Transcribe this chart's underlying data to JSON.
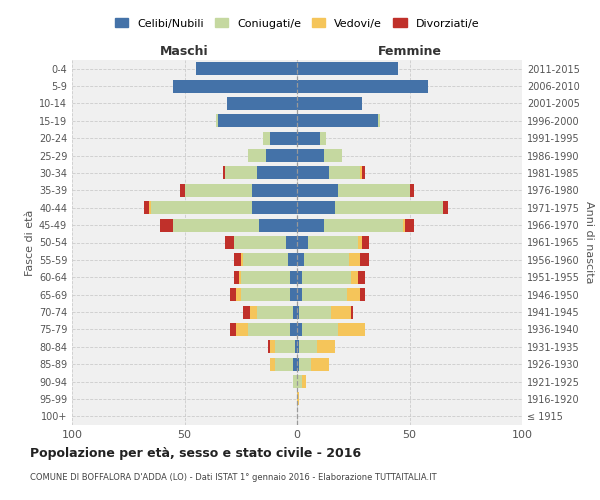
{
  "age_groups": [
    "100+",
    "95-99",
    "90-94",
    "85-89",
    "80-84",
    "75-79",
    "70-74",
    "65-69",
    "60-64",
    "55-59",
    "50-54",
    "45-49",
    "40-44",
    "35-39",
    "30-34",
    "25-29",
    "20-24",
    "15-19",
    "10-14",
    "5-9",
    "0-4"
  ],
  "birth_years": [
    "≤ 1915",
    "1916-1920",
    "1921-1925",
    "1926-1930",
    "1931-1935",
    "1936-1940",
    "1941-1945",
    "1946-1950",
    "1951-1955",
    "1956-1960",
    "1961-1965",
    "1966-1970",
    "1971-1975",
    "1976-1980",
    "1981-1985",
    "1986-1990",
    "1991-1995",
    "1996-2000",
    "2001-2005",
    "2006-2010",
    "2011-2015"
  ],
  "maschi": {
    "celibi": [
      0,
      0,
      0,
      2,
      1,
      3,
      2,
      3,
      3,
      4,
      5,
      17,
      20,
      20,
      18,
      14,
      12,
      35,
      31,
      55,
      45
    ],
    "coniugati": [
      0,
      0,
      2,
      8,
      9,
      19,
      16,
      22,
      22,
      20,
      23,
      38,
      45,
      30,
      14,
      8,
      3,
      1,
      0,
      0,
      0
    ],
    "vedovi": [
      0,
      0,
      0,
      2,
      2,
      5,
      3,
      2,
      1,
      1,
      0,
      0,
      1,
      0,
      0,
      0,
      0,
      0,
      0,
      0,
      0
    ],
    "divorziati": [
      0,
      0,
      0,
      0,
      1,
      3,
      3,
      3,
      2,
      3,
      4,
      6,
      2,
      2,
      1,
      0,
      0,
      0,
      0,
      0,
      0
    ]
  },
  "femmine": {
    "nubili": [
      0,
      0,
      0,
      1,
      1,
      2,
      1,
      2,
      2,
      3,
      5,
      12,
      17,
      18,
      14,
      12,
      10,
      36,
      29,
      58,
      45
    ],
    "coniugate": [
      0,
      0,
      2,
      5,
      8,
      16,
      14,
      20,
      22,
      20,
      22,
      35,
      48,
      32,
      14,
      8,
      3,
      1,
      0,
      0,
      0
    ],
    "vedove": [
      0,
      1,
      2,
      8,
      8,
      12,
      9,
      6,
      3,
      5,
      2,
      1,
      0,
      0,
      1,
      0,
      0,
      0,
      0,
      0,
      0
    ],
    "divorziate": [
      0,
      0,
      0,
      0,
      0,
      0,
      1,
      2,
      3,
      4,
      3,
      4,
      2,
      2,
      1,
      0,
      0,
      0,
      0,
      0,
      0
    ]
  },
  "colors": {
    "celibi_nubili": "#4472a8",
    "coniugati": "#c5d8a0",
    "vedovi": "#f5c55a",
    "divorziati": "#c0302a"
  },
  "xlim": 100,
  "title": "Popolazione per età, sesso e stato civile - 2016",
  "subtitle": "COMUNE DI BOFFALORA D'ADDA (LO) - Dati ISTAT 1° gennaio 2016 - Elaborazione TUTTAITALIA.IT",
  "ylabel_left": "Fasce di età",
  "ylabel_right": "Anni di nascita",
  "xlabel_maschi": "Maschi",
  "xlabel_femmine": "Femmine",
  "legend_labels": [
    "Celibi/Nubili",
    "Coniugati/e",
    "Vedovi/e",
    "Divorziati/e"
  ],
  "background_color": "#ffffff",
  "grid_color": "#cccccc",
  "ax_bg_color": "#f0f0f0"
}
